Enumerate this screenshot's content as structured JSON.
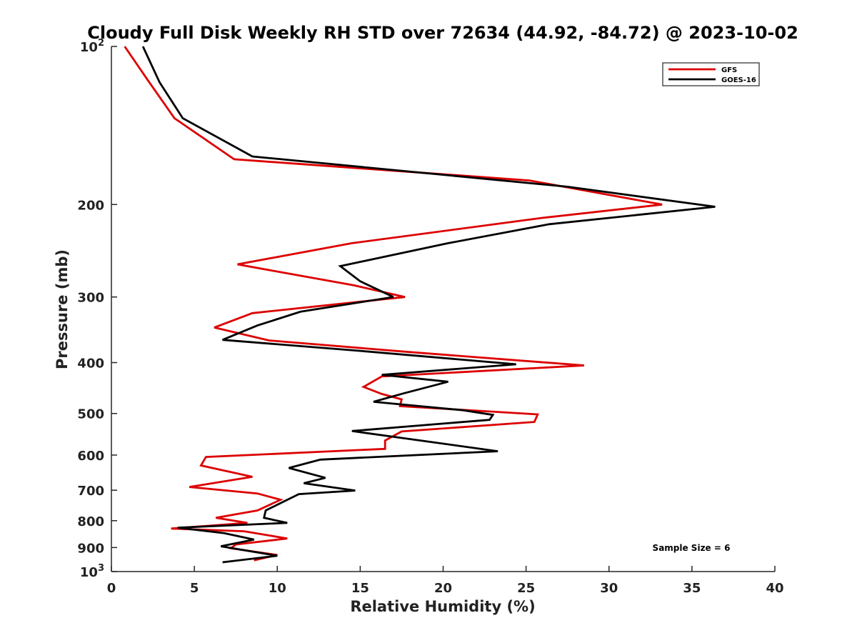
{
  "chart_data": {
    "type": "line",
    "title": "Cloudy Full Disk Weekly RH STD over 72634 (44.92, -84.72) @ 2023-10-02",
    "xlabel": "Relative Humidity (%)",
    "ylabel": "Pressure (mb)",
    "xlim": [
      0,
      40
    ],
    "ylim": [
      100,
      1000
    ],
    "y_scale": "log",
    "y_reversed": true,
    "grid": false,
    "legend_position": "top-right",
    "annotation": "Sample Size = 6",
    "x_ticks": [
      "0",
      "5",
      "10",
      "15",
      "20",
      "25",
      "30",
      "35",
      "40"
    ],
    "y_ticks": [
      {
        "value": 100,
        "label": "10",
        "sup": "2"
      },
      {
        "value": 200,
        "label": "200",
        "sup": ""
      },
      {
        "value": 300,
        "label": "300",
        "sup": ""
      },
      {
        "value": 400,
        "label": "400",
        "sup": ""
      },
      {
        "value": 500,
        "label": "500",
        "sup": ""
      },
      {
        "value": 600,
        "label": "600",
        "sup": ""
      },
      {
        "value": 700,
        "label": "700",
        "sup": ""
      },
      {
        "value": 800,
        "label": "800",
        "sup": ""
      },
      {
        "value": 900,
        "label": "900",
        "sup": ""
      },
      {
        "value": 1000,
        "label": "10",
        "sup": "3"
      }
    ],
    "series": [
      {
        "name": "GFS",
        "color": "#dd0000",
        "points": [
          [
            0.8,
            100
          ],
          [
            2.2,
            116
          ],
          [
            3.8,
            137
          ],
          [
            7.4,
            164
          ],
          [
            25.2,
            180
          ],
          [
            33.2,
            200
          ],
          [
            26.0,
            212
          ],
          [
            14.5,
            237
          ],
          [
            7.6,
            260
          ],
          [
            14.6,
            285
          ],
          [
            17.7,
            300
          ],
          [
            8.5,
            322
          ],
          [
            6.2,
            343
          ],
          [
            9.5,
            363
          ],
          [
            18.0,
            382
          ],
          [
            28.5,
            405
          ],
          [
            16.3,
            425
          ],
          [
            15.2,
            445
          ],
          [
            16.3,
            459
          ],
          [
            17.5,
            470
          ],
          [
            17.4,
            484
          ],
          [
            25.7,
            502
          ],
          [
            25.5,
            519
          ],
          [
            17.5,
            541
          ],
          [
            16.5,
            563
          ],
          [
            16.5,
            584
          ],
          [
            5.7,
            605
          ],
          [
            5.4,
            628
          ],
          [
            8.5,
            660
          ],
          [
            4.7,
            690
          ],
          [
            8.8,
            710
          ],
          [
            10.2,
            730
          ],
          [
            8.8,
            765
          ],
          [
            6.3,
            790
          ],
          [
            8.2,
            808
          ],
          [
            3.6,
            828
          ],
          [
            8.0,
            838
          ],
          [
            10.6,
            865
          ],
          [
            7.5,
            888
          ],
          [
            7.2,
            903
          ],
          [
            10.0,
            930
          ],
          [
            8.6,
            952
          ]
        ]
      },
      {
        "name": "GOES-16",
        "color": "#000000",
        "points": [
          [
            1.9,
            100
          ],
          [
            2.9,
            117
          ],
          [
            4.3,
            137
          ],
          [
            8.5,
            162
          ],
          [
            27.5,
            185
          ],
          [
            36.4,
            202
          ],
          [
            26.4,
            218
          ],
          [
            20.3,
            237
          ],
          [
            13.8,
            262
          ],
          [
            15.0,
            280
          ],
          [
            17.0,
            300
          ],
          [
            11.4,
            320
          ],
          [
            8.8,
            340
          ],
          [
            6.7,
            362
          ],
          [
            15.0,
            380
          ],
          [
            24.4,
            403
          ],
          [
            16.3,
            422
          ],
          [
            20.3,
            435
          ],
          [
            17.6,
            458
          ],
          [
            15.8,
            475
          ],
          [
            21.2,
            493
          ],
          [
            23.0,
            503
          ],
          [
            22.8,
            514
          ],
          [
            14.5,
            540
          ],
          [
            23.3,
            590
          ],
          [
            12.6,
            612
          ],
          [
            10.7,
            635
          ],
          [
            12.9,
            663
          ],
          [
            11.6,
            679
          ],
          [
            14.7,
            701
          ],
          [
            11.3,
            712
          ],
          [
            9.3,
            765
          ],
          [
            9.2,
            790
          ],
          [
            10.6,
            808
          ],
          [
            4.0,
            825
          ],
          [
            6.8,
            845
          ],
          [
            8.6,
            869
          ],
          [
            6.6,
            895
          ],
          [
            10.0,
            933
          ],
          [
            6.7,
            960
          ]
        ]
      }
    ]
  }
}
